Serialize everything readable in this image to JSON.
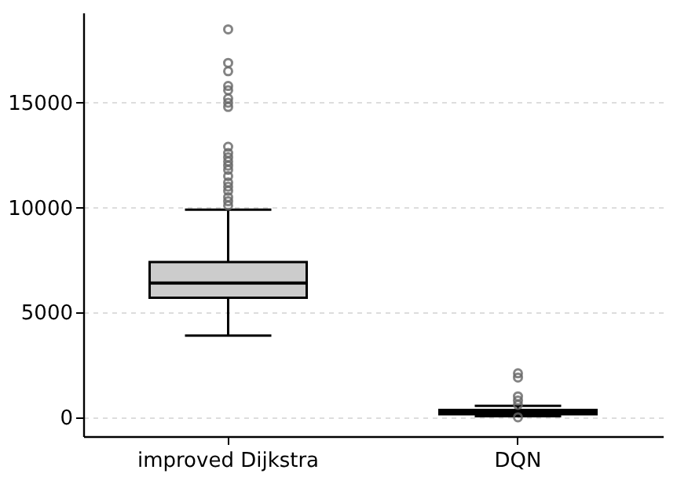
{
  "chart_data": {
    "type": "box",
    "categories": [
      "improved Dijkstra",
      "DQN"
    ],
    "boxes": [
      {
        "low": 3900,
        "q1": 5700,
        "median": 6400,
        "q3": 7400,
        "high": 9900,
        "outliers": [
          10100,
          10300,
          10500,
          10800,
          11000,
          11200,
          11500,
          11800,
          12000,
          12200,
          12400,
          12600,
          12900,
          14800,
          15000,
          15200,
          15600,
          15800,
          16500,
          16900,
          18500
        ]
      },
      {
        "low": 50,
        "q1": 150,
        "median": 250,
        "q3": 350,
        "high": 550,
        "outliers": [
          0,
          600,
          800,
          1000,
          1900,
          2100
        ]
      }
    ],
    "color": "#cccccc",
    "ylim": [
      -900,
      19300
    ],
    "yticks": [
      0,
      5000,
      10000,
      15000
    ],
    "grid": "y"
  }
}
